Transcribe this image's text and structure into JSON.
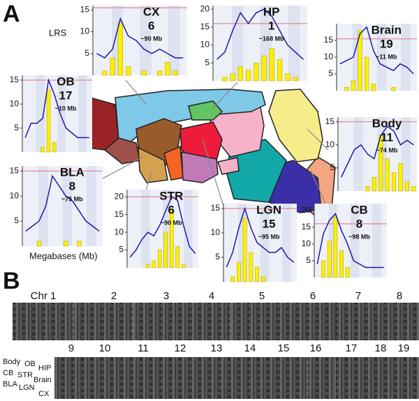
{
  "panel_a": {
    "label": "A",
    "y_axis_label": "LRS",
    "x_axis_label": "Megabases (Mb)",
    "plots": [
      {
        "region": "CX",
        "chromosome": "6",
        "position": "~90 Mb",
        "ylim": [
          0,
          16
        ],
        "yticks": [
          5,
          10,
          15
        ],
        "threshold": 15.5,
        "lrs": [
          5,
          4,
          6,
          13,
          9,
          8,
          6,
          5,
          6,
          5,
          4,
          4
        ],
        "bars": [
          0,
          1,
          4,
          12,
          2,
          0,
          1,
          0,
          1,
          3,
          1,
          0
        ]
      },
      {
        "region": "HP",
        "chromosome": "1",
        "position": "~168 Mb",
        "ylim": [
          0,
          21
        ],
        "yticks": [
          5,
          10,
          15,
          20
        ],
        "threshold": 16,
        "lrs": [
          6,
          8,
          14,
          19,
          16,
          19,
          20,
          18,
          14,
          10,
          8,
          6
        ],
        "bars": [
          0,
          1,
          2,
          4,
          3,
          5,
          7,
          9,
          6,
          2,
          1,
          0
        ]
      },
      {
        "region": "Brain",
        "chromosome": "19",
        "position": "~11 Mb",
        "ylim": [
          0,
          20
        ],
        "yticks": [
          5,
          10,
          15
        ],
        "threshold": 15.5,
        "lrs": [
          8,
          9,
          10,
          17,
          19,
          12,
          8,
          7,
          6,
          8,
          7,
          5
        ],
        "bars": [
          0,
          1,
          3,
          18,
          10,
          2,
          0,
          0,
          1,
          0,
          0,
          0
        ]
      },
      {
        "region": "OB",
        "chromosome": "17",
        "position": "~10 Mb",
        "ylim": [
          0,
          16
        ],
        "yticks": [
          5,
          10,
          15
        ],
        "threshold": 15,
        "lrs": [
          3,
          6,
          6,
          7,
          15,
          12,
          8,
          5,
          4,
          3,
          3,
          3
        ],
        "bars": [
          0,
          0,
          0,
          1,
          13,
          2,
          0,
          0,
          0,
          0,
          0,
          0
        ]
      },
      {
        "region": "Body",
        "chromosome": "11",
        "position": "~74 Mb",
        "ylim": [
          0,
          16
        ],
        "yticks": [
          5,
          10,
          15
        ],
        "threshold": 15,
        "lrs": [
          3,
          6,
          9,
          10,
          8,
          7,
          12,
          14,
          13,
          10,
          11,
          10
        ],
        "bars": [
          0,
          0,
          0,
          0,
          1,
          3,
          12,
          7,
          4,
          6,
          2,
          1
        ]
      },
      {
        "region": "BLA",
        "chromosome": "8",
        "position": "~75 Mb",
        "ylim": [
          0,
          16
        ],
        "yticks": [
          5,
          10,
          15
        ],
        "threshold": 15,
        "lrs": [
          3,
          4,
          5,
          8,
          14,
          12,
          10,
          9,
          7,
          5,
          4,
          3
        ],
        "bars": [
          0,
          0,
          1,
          0,
          0,
          0,
          1,
          0,
          1,
          0,
          0,
          0
        ]
      },
      {
        "region": "STR",
        "chromosome": "6",
        "position": "~90 Mb",
        "ylim": [
          0,
          22
        ],
        "yticks": [
          5,
          10,
          15,
          20
        ],
        "threshold": 20,
        "lrs": [
          3,
          5,
          8,
          10,
          9,
          12,
          16,
          20,
          19,
          12,
          6,
          4
        ],
        "bars": [
          0,
          0,
          0,
          1,
          2,
          5,
          10,
          16,
          6,
          1,
          0,
          0
        ]
      },
      {
        "region": "LGN",
        "chromosome": "15",
        "position": "~95 Mb",
        "ylim": [
          0,
          16
        ],
        "yticks": [
          5,
          10,
          15
        ],
        "threshold": 15,
        "lrs": [
          3,
          6,
          11,
          15,
          11,
          8,
          7,
          6,
          6,
          7,
          5,
          4
        ],
        "bars": [
          0,
          1,
          4,
          13,
          6,
          3,
          1,
          0,
          0,
          0,
          0,
          0
        ]
      },
      {
        "region": "CB",
        "chromosome": "8",
        "position": "~98 Mb",
        "ylim": [
          0,
          22
        ],
        "yticks": [
          5,
          10,
          15,
          20
        ],
        "threshold": 16,
        "lrs": [
          4,
          13,
          17,
          19,
          14,
          10,
          5,
          4,
          3,
          3,
          3,
          3
        ],
        "bars": [
          0,
          5,
          11,
          18,
          8,
          3,
          0,
          0,
          0,
          0,
          0,
          0
        ]
      }
    ]
  },
  "panel_b": {
    "label": "B",
    "chromosomes": [
      "Chr 1",
      "2",
      "3",
      "4",
      "5",
      "6",
      "7",
      "8",
      "9",
      "10",
      "11",
      "12",
      "13",
      "14",
      "15",
      "16",
      "17",
      "18",
      "19"
    ],
    "row_labels": [
      "Body",
      "OB",
      "HIP",
      "CB",
      "STR",
      "Brain",
      "BLA",
      "LGN",
      "CX"
    ]
  }
}
